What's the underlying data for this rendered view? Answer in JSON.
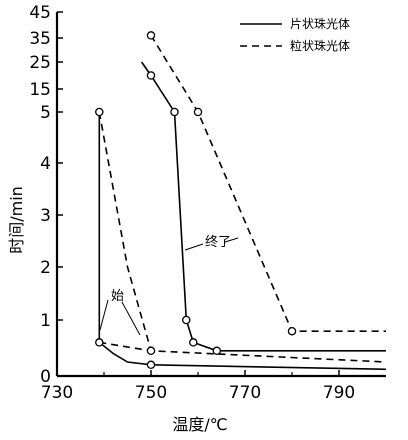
{
  "chart_data": {
    "type": "line",
    "xlabel": "温度/℃",
    "ylabel": "时间/min",
    "x_ticks": [
      730,
      750,
      770,
      790
    ],
    "y_ticks": [
      0,
      1,
      2,
      3,
      4,
      5,
      15,
      25,
      35,
      45
    ],
    "xlim": [
      730,
      800
    ],
    "y_scale": "piecewise: linear 0–5, compressed 5–45",
    "grid": false,
    "legend_position": "top-right",
    "series": [
      {
        "name": "片状珠光体",
        "style": "solid",
        "start_curve": [
          {
            "x": 739,
            "y": 0.6
          },
          {
            "x": 742,
            "y": 0.4
          },
          {
            "x": 745,
            "y": 0.25
          },
          {
            "x": 750,
            "y": 0.2
          },
          {
            "x": 800,
            "y": 0.12
          }
        ],
        "end_curve": [
          {
            "x": 748,
            "y": 25
          },
          {
            "x": 750,
            "y": 20
          },
          {
            "x": 755,
            "y": 5
          },
          {
            "x": 757.5,
            "y": 1
          },
          {
            "x": 759,
            "y": 0.6
          },
          {
            "x": 764,
            "y": 0.45
          },
          {
            "x": 800,
            "y": 0.45
          }
        ],
        "connector": [
          {
            "x": 739,
            "y": 5
          },
          {
            "x": 739,
            "y": 0.6
          }
        ]
      },
      {
        "name": "粒状珠光体",
        "style": "dashed",
        "start_curve": [
          {
            "x": 739,
            "y": 0.6
          },
          {
            "x": 750,
            "y": 0.45
          },
          {
            "x": 800,
            "y": 0.25
          }
        ],
        "end_curve": [
          {
            "x": 739,
            "y": 5
          },
          {
            "x": 745,
            "y": 2
          },
          {
            "x": 750,
            "y": 0.45
          }
        ],
        "end_curve_2": [
          {
            "x": 750,
            "y": 36
          },
          {
            "x": 760,
            "y": 5
          },
          {
            "x": 780,
            "y": 0.8
          },
          {
            "x": 800,
            "y": 0.8
          }
        ],
        "markers": [
          {
            "x": 739,
            "y": 5
          },
          {
            "x": 739,
            "y": 0.6
          },
          {
            "x": 750,
            "y": 0.45
          },
          {
            "x": 750,
            "y": 36
          },
          {
            "x": 760,
            "y": 5
          },
          {
            "x": 780,
            "y": 0.8
          }
        ]
      }
    ],
    "solid_markers": [
      {
        "x": 750,
        "y": 0.2
      },
      {
        "x": 750,
        "y": 20
      },
      {
        "x": 755,
        "y": 5
      },
      {
        "x": 757.5,
        "y": 1
      },
      {
        "x": 759,
        "y": 0.6
      },
      {
        "x": 764,
        "y": 0.45
      }
    ],
    "annotations": {
      "start": "始",
      "end": "终了"
    }
  }
}
